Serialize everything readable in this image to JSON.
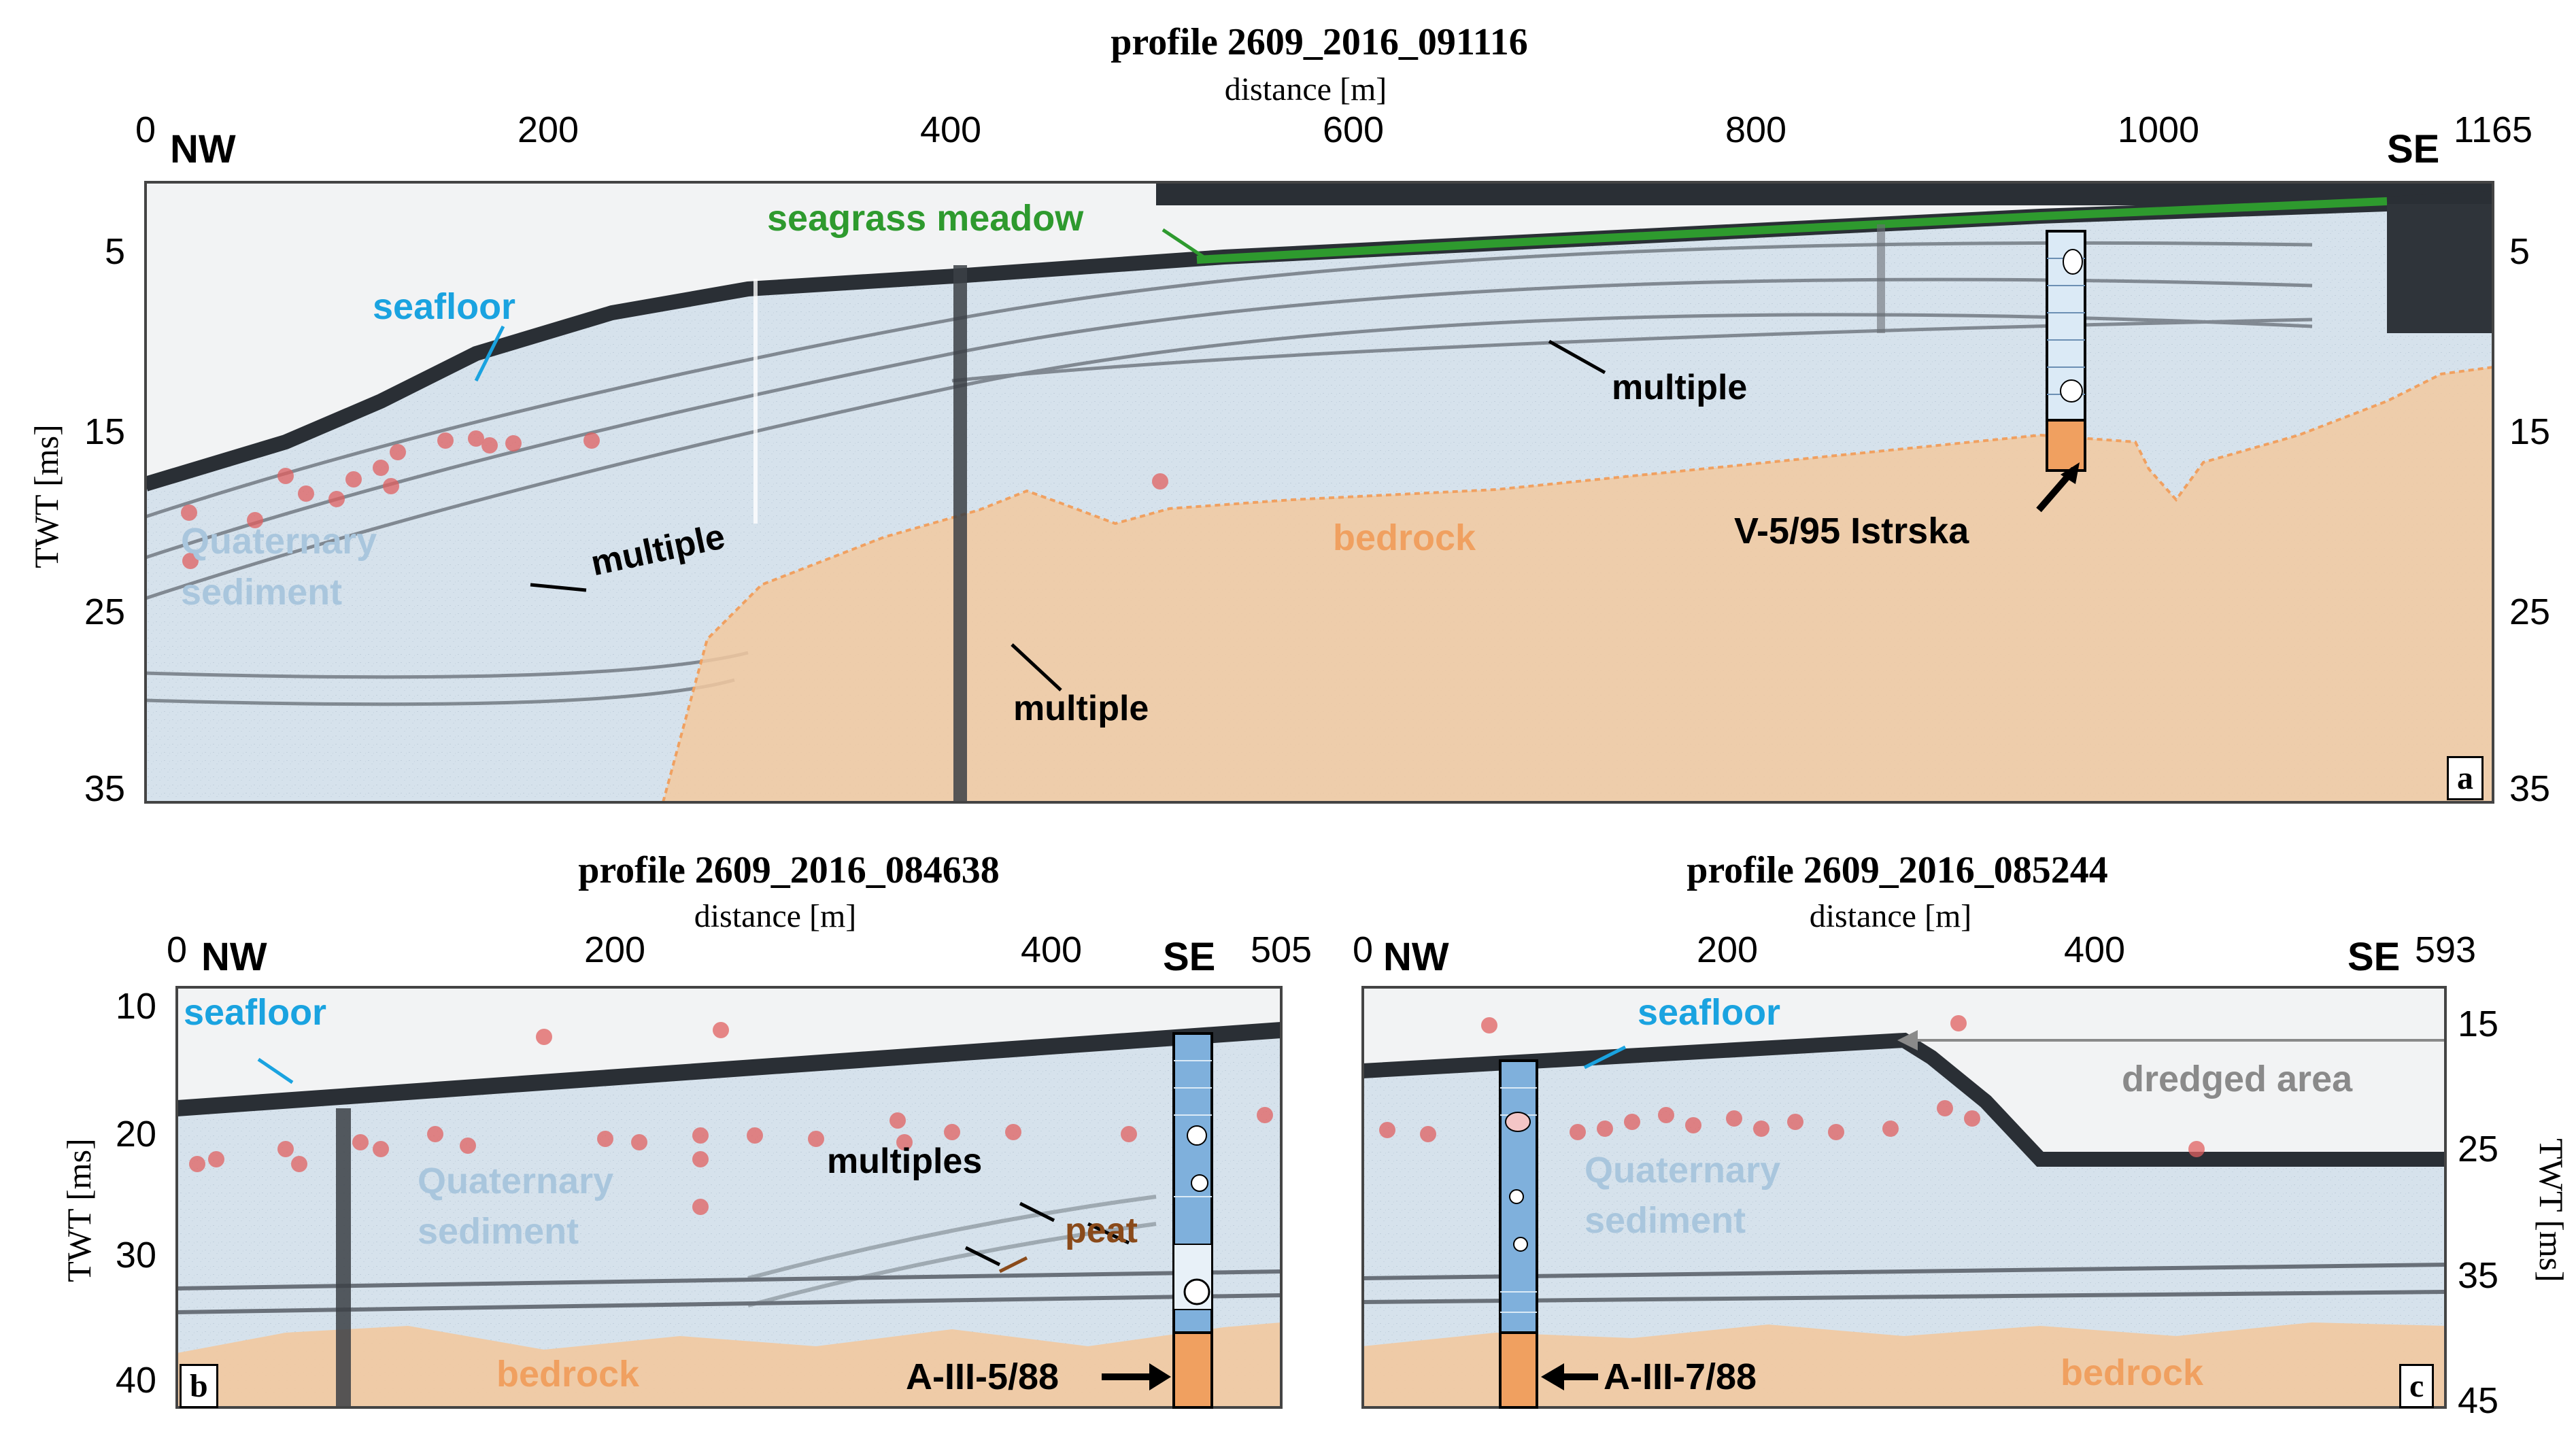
{
  "panel_a": {
    "title": "profile 2609_2016_091116",
    "distance_label": "distance [m]",
    "x_ticks": [
      "0",
      "200",
      "400",
      "600",
      "800",
      "1000",
      "1165"
    ],
    "left_dir": "NW",
    "right_dir": "SE",
    "y_label": "TWT [ms]",
    "y_ticks_left": [
      "5",
      "15",
      "25",
      "35"
    ],
    "y_ticks_right": [
      "5",
      "15",
      "25",
      "35"
    ],
    "panel_label": "a",
    "annotations": {
      "seagrass": "seagrass meadow",
      "seafloor": "seafloor",
      "quaternary_1": "Quaternary",
      "quaternary_2": "sediment",
      "multiple_1": "multiple",
      "multiple_2": "multiple",
      "multiple_3": "multiple",
      "bedrock": "bedrock",
      "core": "V-5/95 Istrska"
    }
  },
  "panel_b": {
    "title": "profile 2609_2016_084638",
    "distance_label": "distance [m]",
    "x_ticks": [
      "0",
      "200",
      "400",
      "505"
    ],
    "left_dir": "NW",
    "right_dir": "SE",
    "y_label": "TWT [ms]",
    "y_ticks_left": [
      "10",
      "20",
      "30",
      "40"
    ],
    "panel_label": "b",
    "annotations": {
      "seafloor": "seafloor",
      "quaternary_1": "Quaternary",
      "quaternary_2": "sediment",
      "multiples": "multiples",
      "peat": "peat",
      "bedrock": "bedrock",
      "core": "A-III-5/88"
    }
  },
  "panel_c": {
    "title": "profile 2609_2016_085244",
    "distance_label": "distance [m]",
    "x_ticks": [
      "0",
      "200",
      "400",
      "593"
    ],
    "left_dir": "NW",
    "right_dir": "SE",
    "y_label": "TWT [ms]",
    "y_ticks_right": [
      "15",
      "25",
      "35",
      "45"
    ],
    "panel_label": "c",
    "annotations": {
      "seafloor": "seafloor",
      "dredged": "dredged area",
      "quaternary_1": "Quaternary",
      "quaternary_2": "sediment",
      "bedrock": "bedrock",
      "core": "A-III-7/88"
    }
  },
  "colors": {
    "seafloor_label": "#1aa3e0",
    "seagrass": "#2e9a2e",
    "quaternary_fill": "#c9dcec",
    "bedrock_fill": "#f2c9a0",
    "bedrock_label": "#f0a060",
    "peat": "#8a4a1a",
    "gas_dots": "#e06060",
    "dredged": "#8a8a8a"
  }
}
